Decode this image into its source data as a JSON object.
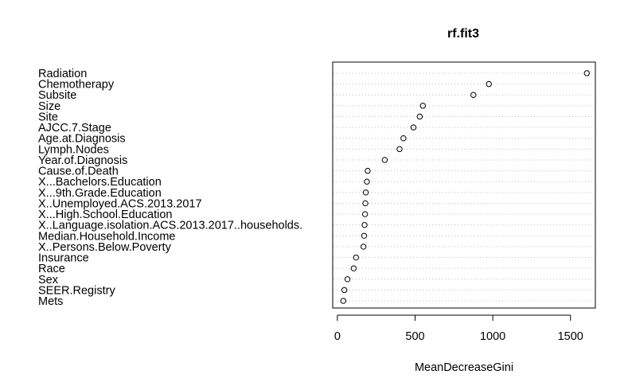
{
  "chart_data": {
    "type": "scatter",
    "subtype": "dotchart",
    "title": "rf.fit3",
    "xlabel": "MeanDecreaseGini",
    "ylabel": "",
    "xlim": [
      -30,
      1660
    ],
    "xticks": [
      0,
      500,
      1000,
      1500
    ],
    "xtick_labels": [
      "0",
      "500",
      "1000",
      "1500"
    ],
    "grid": "horizontal dotted lines per row",
    "legend": "none",
    "colors": {
      "point": "#000000",
      "grid": "#bebebe",
      "axis": "#000000"
    },
    "categories": [
      "Radiation",
      "Chemotherapy",
      "Subsite",
      "Size",
      "Site",
      "AJCC.7.Stage",
      "Age.at.Diagnosis",
      "Lymph.Nodes",
      "Year.of.Diagnosis",
      "Cause.of.Death",
      "X...Bachelors.Education",
      "X...9th.Grade.Education",
      "X..Unemployed.ACS.2013.2017",
      "X...High.School.Education",
      "X..Language.isolation.ACS.2013.2017..households.",
      "Median.Household.Income",
      "X..Persons.Below.Poverty",
      "Insurance",
      "Race",
      "Sex",
      "SEER.Registry",
      "Mets"
    ],
    "values": [
      1605,
      975,
      875,
      550,
      530,
      490,
      425,
      400,
      305,
      195,
      190,
      183,
      180,
      178,
      175,
      172,
      168,
      120,
      105,
      65,
      45,
      38
    ]
  }
}
